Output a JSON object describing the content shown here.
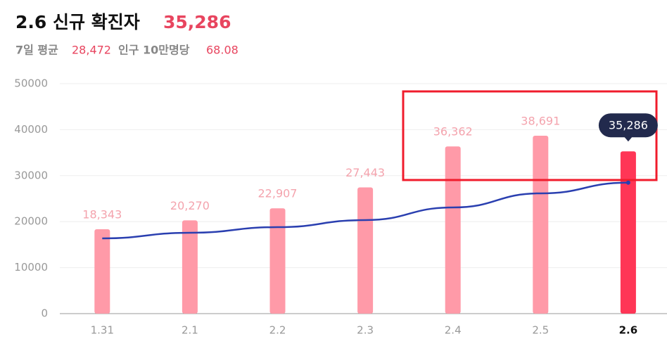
{
  "header": {
    "title": "2.6 신규 확진자",
    "count": "35,286",
    "avg_label": "7일 평균",
    "avg_value": "28,472",
    "per_label": "인구 10만명당",
    "per_value": "68.08"
  },
  "chart_data": {
    "type": "bar",
    "categories": [
      "1.31",
      "2.1",
      "2.2",
      "2.3",
      "2.4",
      "2.5",
      "2.6"
    ],
    "values": [
      18343,
      20270,
      22907,
      27443,
      36362,
      38691,
      35286
    ],
    "value_labels": [
      "18,343",
      "20,270",
      "22,907",
      "27,443",
      "36,362",
      "38,691",
      "35,286"
    ],
    "color": "#ff9aa8",
    "highlight_color": "#ff3656",
    "line": {
      "values": [
        16360,
        17580,
        18800,
        20340,
        23090,
        26150,
        28472
      ],
      "color": "#2a3fb0"
    },
    "ylim": [
      0,
      50000
    ],
    "yticks": [
      0,
      10000,
      20000,
      30000,
      40000,
      50000
    ],
    "grid": true
  }
}
